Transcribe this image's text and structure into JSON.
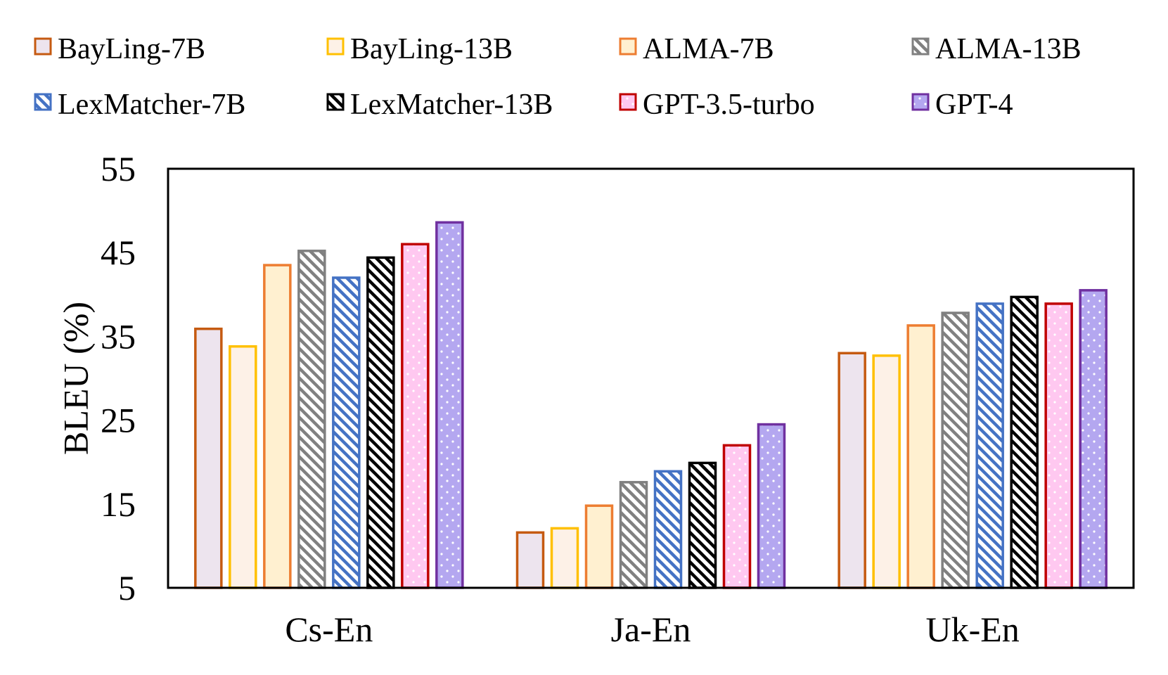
{
  "chart_data": {
    "type": "bar",
    "title": "",
    "xlabel": "",
    "ylabel": "BLEU (%)",
    "ylim": [
      5,
      55
    ],
    "yticks": [
      5,
      15,
      25,
      35,
      45,
      55
    ],
    "categories": [
      "Cs-En",
      "Ja-En",
      "Uk-En"
    ],
    "grid": false,
    "legend_position": "top",
    "series": [
      {
        "name": "BayLing-7B",
        "values": [
          35.9,
          11.6,
          33.0
        ],
        "stroke": "#C55A11",
        "fill": "#EDE4EE",
        "pattern": "solid"
      },
      {
        "name": "BayLing-13B",
        "values": [
          33.8,
          12.1,
          32.7
        ],
        "stroke": "#FFC000",
        "fill": "#FDF1E7",
        "pattern": "solid"
      },
      {
        "name": "ALMA-7B",
        "values": [
          43.5,
          14.8,
          36.3
        ],
        "stroke": "#ED7D31",
        "fill": "#FFF0D0",
        "pattern": "solid"
      },
      {
        "name": "ALMA-13B",
        "values": [
          45.2,
          17.6,
          37.8
        ],
        "stroke": "#808080",
        "fill": "#FFFFFF",
        "pattern": "hatch",
        "hatch": "#808080"
      },
      {
        "name": "LexMatcher-7B",
        "values": [
          42.0,
          18.9,
          38.9
        ],
        "stroke": "#4472C4",
        "fill": "#FFFFFF",
        "pattern": "hatch",
        "hatch": "#4472C4"
      },
      {
        "name": "LexMatcher-13B",
        "values": [
          44.4,
          19.9,
          39.7
        ],
        "stroke": "#000000",
        "fill": "#FFFFFF",
        "pattern": "hatch",
        "hatch": "#000000"
      },
      {
        "name": "GPT-3.5-turbo",
        "values": [
          46.0,
          22.0,
          38.9
        ],
        "stroke": "#C00000",
        "fill": "#FFC8F0",
        "pattern": "dots"
      },
      {
        "name": "GPT-4",
        "values": [
          48.6,
          24.5,
          40.5
        ],
        "stroke": "#7030A0",
        "fill": "#B4A7F0",
        "pattern": "dots"
      }
    ]
  }
}
